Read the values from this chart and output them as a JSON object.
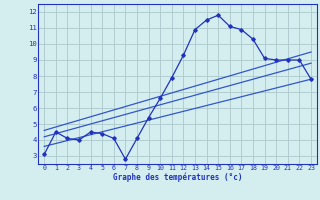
{
  "x": [
    0,
    1,
    2,
    3,
    4,
    5,
    6,
    7,
    8,
    9,
    10,
    11,
    12,
    13,
    14,
    15,
    16,
    17,
    18,
    19,
    20,
    21,
    22,
    23
  ],
  "y_main": [
    3.1,
    4.5,
    4.1,
    4.0,
    4.5,
    4.4,
    4.1,
    2.8,
    4.1,
    5.4,
    6.6,
    7.9,
    9.3,
    10.9,
    11.5,
    11.8,
    11.1,
    10.9,
    10.3,
    9.1,
    9.0,
    9.0,
    9.0,
    7.8
  ],
  "reg_line1_start": 3.6,
  "reg_line1_end": 7.8,
  "reg_line2_start": 4.2,
  "reg_line2_end": 8.8,
  "reg_line3_start": 4.6,
  "reg_line3_end": 9.5,
  "main_color": "#2233bb",
  "line_color": "#3355cc",
  "bg_color": "#d4eef0",
  "grid_color": "#b0ccd0",
  "axis_label": "Graphe des températures (°c)",
  "xlim": [
    -0.5,
    23.5
  ],
  "ylim": [
    2.5,
    12.5
  ],
  "yticks": [
    3,
    4,
    5,
    6,
    7,
    8,
    9,
    10,
    11,
    12
  ],
  "xticks": [
    0,
    1,
    2,
    3,
    4,
    5,
    6,
    7,
    8,
    9,
    10,
    11,
    12,
    13,
    14,
    15,
    16,
    17,
    18,
    19,
    20,
    21,
    22,
    23
  ]
}
